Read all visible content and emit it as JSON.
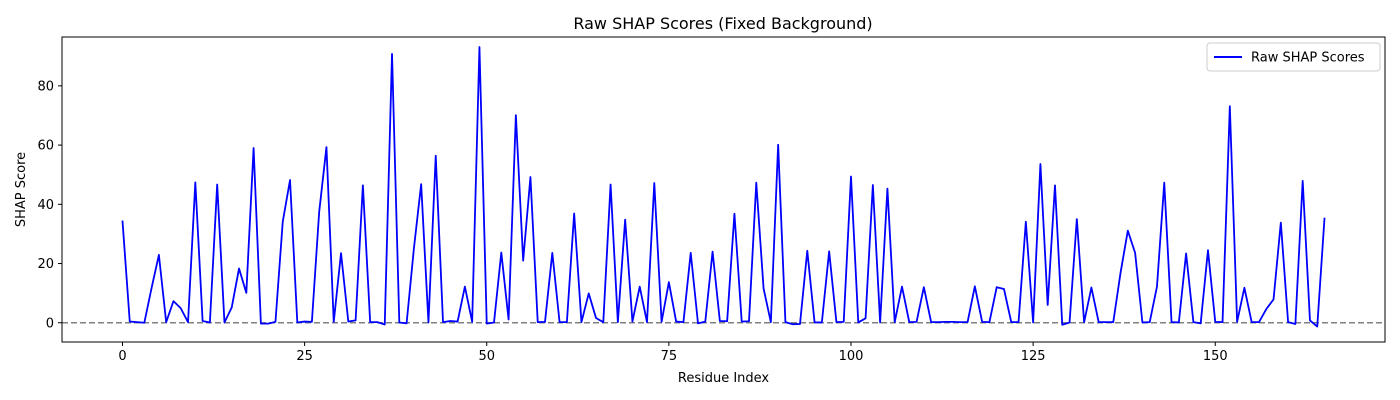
{
  "chart_data": {
    "type": "line",
    "title": "Raw SHAP Scores (Fixed Background)",
    "xlabel": "Residue Index",
    "ylabel": "SHAP Score",
    "xlim": [
      -8.3,
      173.3
    ],
    "ylim": [
      -6.5,
      96.5
    ],
    "xticks": [
      0,
      25,
      50,
      75,
      100,
      125,
      150
    ],
    "yticks": [
      0,
      20,
      40,
      60,
      80
    ],
    "grid": false,
    "legend_position": "top-right",
    "reference_line": {
      "y": 0,
      "style": "dashed",
      "color": "#808080"
    },
    "series": [
      {
        "name": "Raw SHAP Scores",
        "color": "#0000ff",
        "values": [
          34.5,
          0.4,
          0.2,
          0,
          11.8,
          22.9,
          0.2,
          7.3,
          4.9,
          0.2,
          47.4,
          0.6,
          0.1,
          46.7,
          0.1,
          5.2,
          18.3,
          10.1,
          59.0,
          -0.3,
          -0.3,
          0.3,
          34.1,
          48.2,
          0.1,
          0.4,
          0.3,
          37.4,
          59.3,
          0.3,
          23.5,
          0.4,
          0.8,
          46.4,
          0.2,
          0.2,
          -0.6,
          90.8,
          0.1,
          -0.2,
          25.0,
          46.8,
          0.1,
          56.4,
          0.2,
          0.6,
          0.4,
          12.2,
          0.3,
          93.1,
          -0.3,
          0.1,
          23.7,
          1.1,
          70.1,
          21.0,
          49.2,
          0.2,
          0.3,
          23.6,
          0.2,
          0.2,
          36.9,
          0.2,
          9.9,
          1.6,
          0.2,
          46.7,
          0.2,
          34.8,
          0.4,
          12.2,
          0.2,
          47.2,
          0.3,
          13.7,
          0.4,
          0.2,
          23.6,
          -0.2,
          0.4,
          24.0,
          0.6,
          0.5,
          36.8,
          0.4,
          0.5,
          47.3,
          11.6,
          0.2,
          60.1,
          0.2,
          -0.5,
          -0.4,
          24.3,
          0.1,
          0.1,
          24.1,
          0.2,
          0.3,
          49.4,
          0.1,
          1.5,
          46.5,
          0.1,
          45.3,
          0.2,
          12.2,
          0.2,
          0.3,
          12.0,
          0.2,
          0.2,
          0.3,
          0.3,
          0.2,
          0.2,
          12.3,
          0.3,
          0.2,
          12.0,
          11.4,
          0.2,
          0.2,
          34.1,
          0.1,
          53.6,
          6.0,
          46.4,
          -0.7,
          0.1,
          35.0,
          0.2,
          11.9,
          0.2,
          0.2,
          0.2,
          16.9,
          31.1,
          23.6,
          0.1,
          0.2,
          12.2,
          47.3,
          0.2,
          0.1,
          23.4,
          0.2,
          -0.2,
          24.5,
          0.3,
          0.2,
          73.1,
          0.3,
          11.8,
          0.2,
          0.2,
          4.6,
          7.9,
          33.8,
          0.2,
          -0.4,
          47.9,
          0.8,
          -1.3,
          35.5
        ]
      }
    ]
  }
}
